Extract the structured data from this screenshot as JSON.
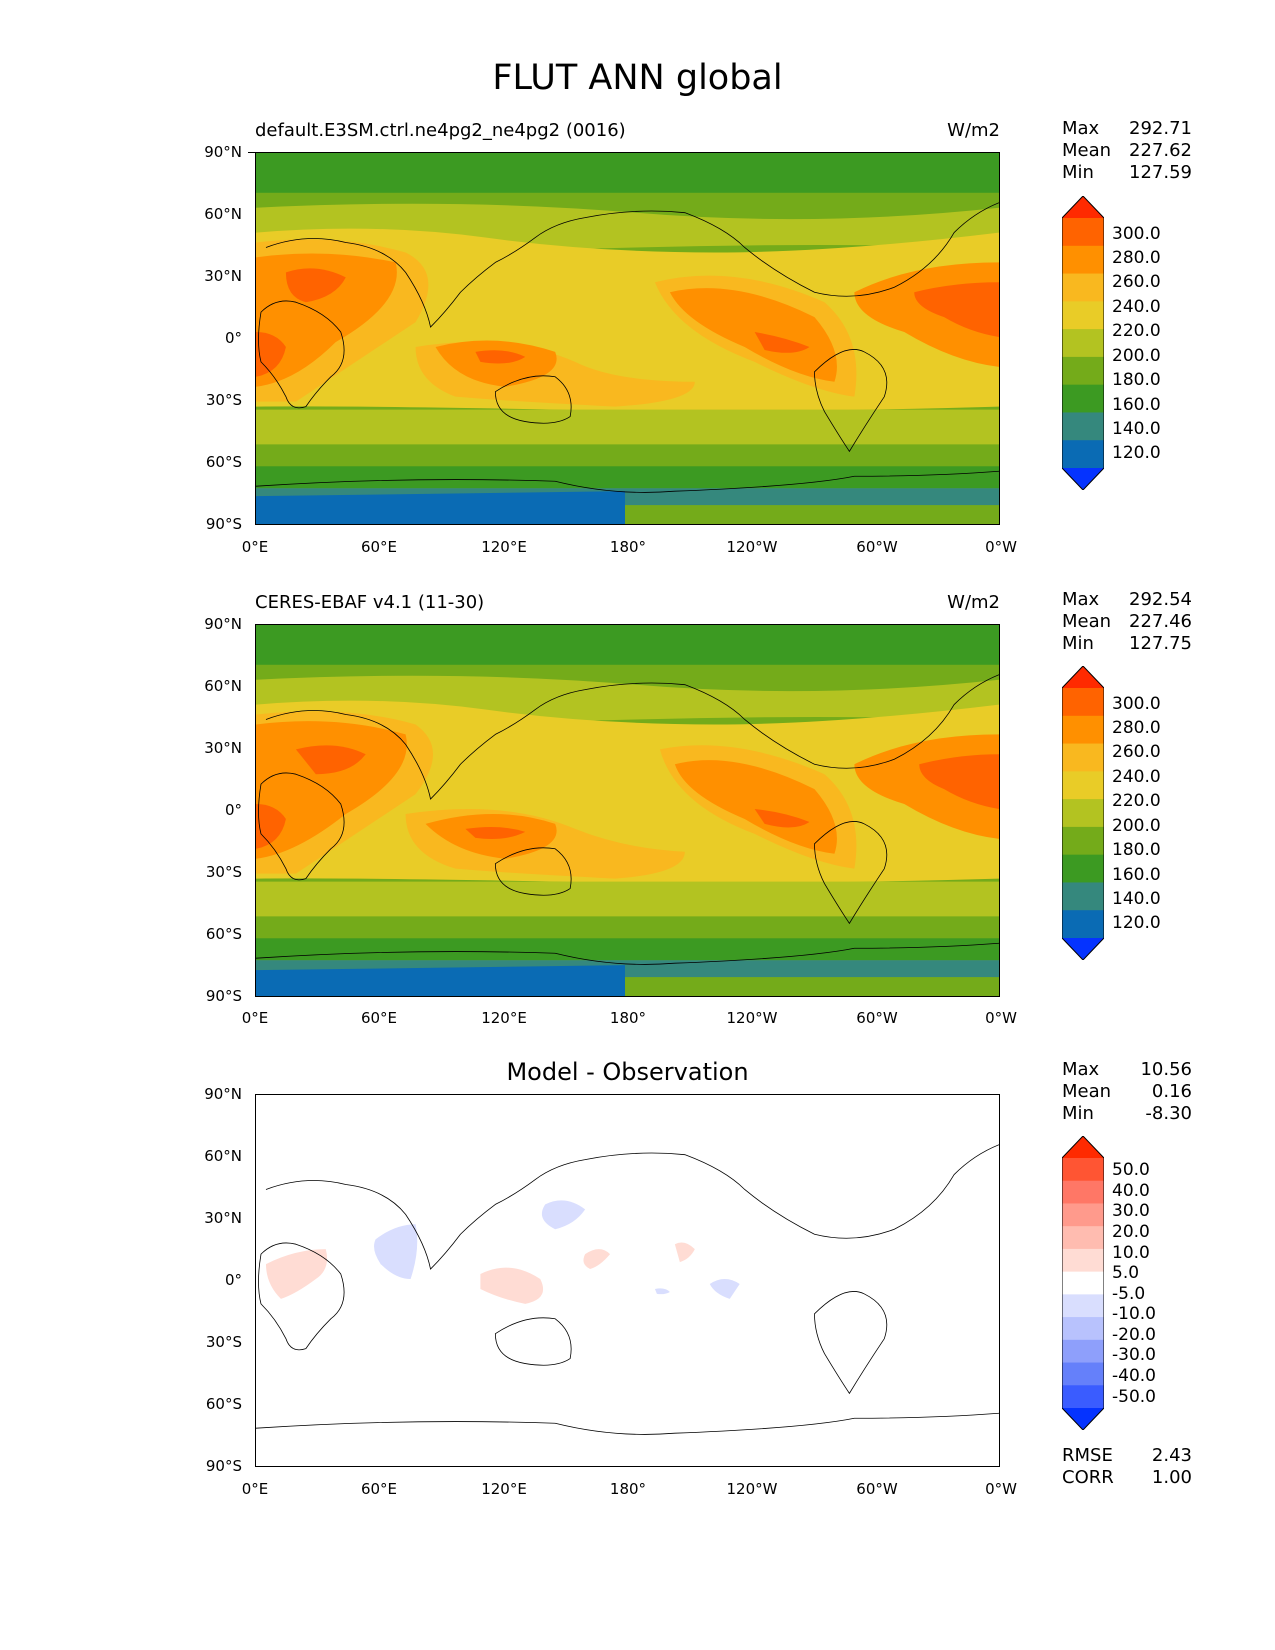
{
  "figure": {
    "title": "FLUT ANN global"
  },
  "lat_labels": [
    "90°N",
    "60°N",
    "30°N",
    "0°",
    "30°S",
    "60°S",
    "90°S"
  ],
  "lon_labels": [
    "0°E",
    "60°E",
    "120°E",
    "180°",
    "120°W",
    "60°W",
    "0°W"
  ],
  "panels": [
    {
      "title": "default.E3SM.ctrl.ne4pg2_ne4pg2 (0016)",
      "units": "W/m2",
      "stats": [
        {
          "label": "Max",
          "value": "292.71"
        },
        {
          "label": "Mean",
          "value": "227.62"
        },
        {
          "label": "Min",
          "value": "127.59"
        }
      ],
      "colorbar": {
        "labels": [
          "300.0",
          "280.0",
          "260.0",
          "240.0",
          "220.0",
          "200.0",
          "180.0",
          "160.0",
          "140.0",
          "120.0"
        ],
        "colors": [
          "#ff2a00",
          "#ff6300",
          "#ff9000",
          "#f9b81f",
          "#e9cc27",
          "#b3c321",
          "#74ab1a",
          "#3c9a22",
          "#35887d",
          "#0a6bb4",
          "#0533ff"
        ]
      }
    },
    {
      "title": "CERES-EBAF v4.1 (11-30)",
      "units": "W/m2",
      "stats": [
        {
          "label": "Max",
          "value": "292.54"
        },
        {
          "label": "Mean",
          "value": "227.46"
        },
        {
          "label": "Min",
          "value": "127.75"
        }
      ],
      "colorbar": {
        "labels": [
          "300.0",
          "280.0",
          "260.0",
          "240.0",
          "220.0",
          "200.0",
          "180.0",
          "160.0",
          "140.0",
          "120.0"
        ],
        "colors": [
          "#ff2a00",
          "#ff6300",
          "#ff9000",
          "#f9b81f",
          "#e9cc27",
          "#b3c321",
          "#74ab1a",
          "#3c9a22",
          "#35887d",
          "#0a6bb4",
          "#0533ff"
        ]
      }
    },
    {
      "title": "Model - Observation",
      "units": "",
      "stats": [
        {
          "label": "Max",
          "value": "10.56"
        },
        {
          "label": "Mean",
          "value": "0.16"
        },
        {
          "label": "Min",
          "value": "-8.30"
        }
      ],
      "colorbar": {
        "labels": [
          "50.0",
          "40.0",
          "30.0",
          "20.0",
          "10.0",
          "5.0",
          "-5.0",
          "-10.0",
          "-20.0",
          "-30.0",
          "-40.0",
          "-50.0"
        ],
        "colors": [
          "#ff2a00",
          "#ff5533",
          "#ff7766",
          "#ff9a8c",
          "#ffbcb0",
          "#ffdcd4",
          "#ffffff",
          "#d9defe",
          "#b8c2fd",
          "#8e9ffb",
          "#6580fa",
          "#3a5cff",
          "#0533ff"
        ]
      },
      "error_stats": [
        {
          "label": "RMSE",
          "value": "2.43"
        },
        {
          "label": "CORR",
          "value": "1.00"
        }
      ]
    }
  ]
}
